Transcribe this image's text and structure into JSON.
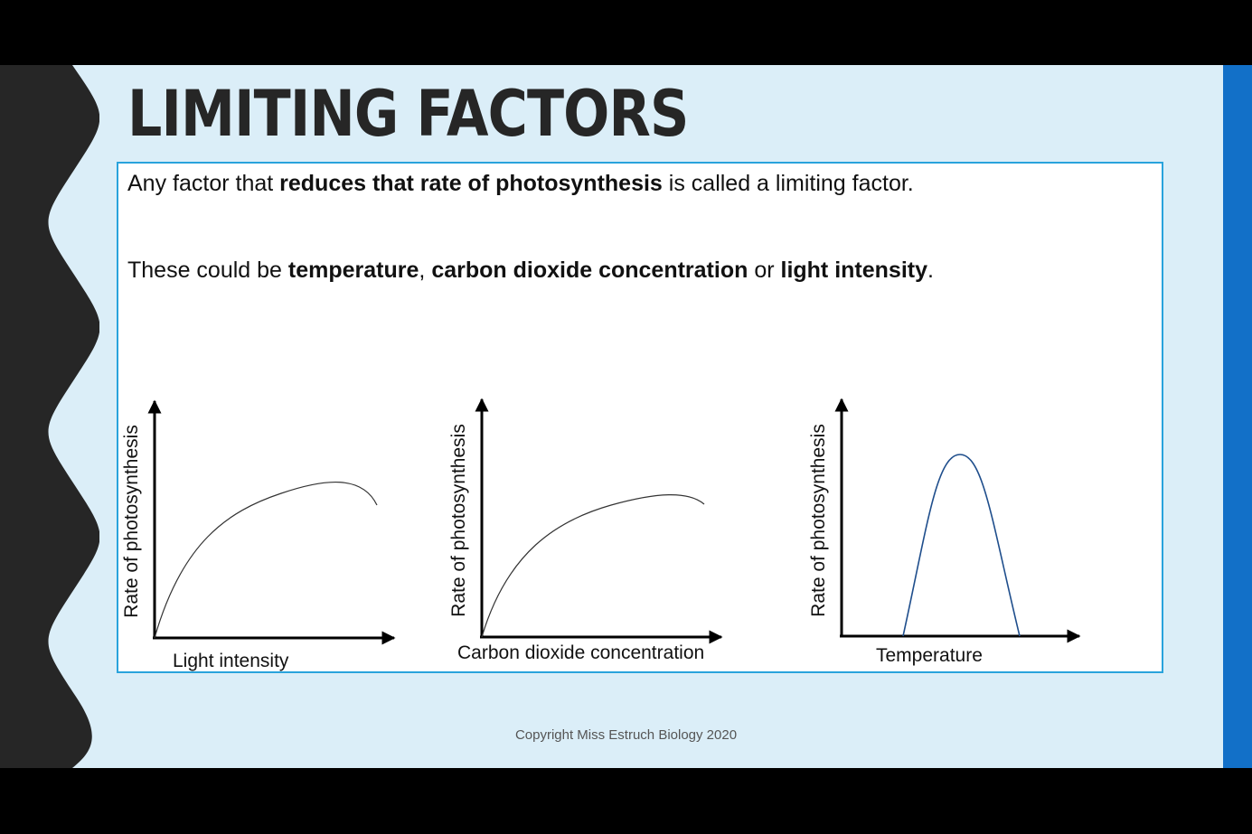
{
  "title": "LIMITING FACTORS",
  "content": {
    "line1": {
      "t1": "Any factor that ",
      "b1": "reduces that rate of photosynthesis",
      "t2": " is called a limiting factor."
    },
    "line2": {
      "t1": "These could be ",
      "b1": "temperature",
      "t2": ", ",
      "b2": "carbon dioxide concentration",
      "t3": " or ",
      "b3": "light intensity",
      "t4": "."
    }
  },
  "graphs": [
    {
      "ylabel": "Rate of photosynthesis",
      "xlabel": "Light intensity",
      "curve": "saturation",
      "curve_color": "#333333"
    },
    {
      "ylabel": "Rate of photosynthesis",
      "xlabel": "Carbon dioxide concentration",
      "curve": "saturation",
      "curve_color": "#333333"
    },
    {
      "ylabel": "Rate of photosynthesis",
      "xlabel": "Temperature",
      "curve": "peak",
      "curve_color": "#1f4e8c"
    }
  ],
  "footer": "Copyright Miss Estruch Biology 2020",
  "colors": {
    "background": "#dbeef8",
    "accent_bar": "#1270c8",
    "box_border": "#29a3dc",
    "title": "#262626"
  }
}
